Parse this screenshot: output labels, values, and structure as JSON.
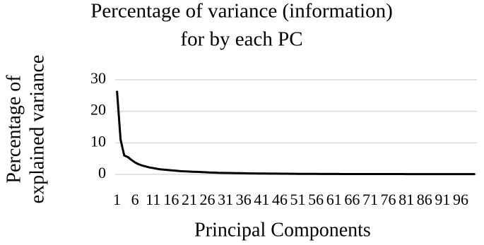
{
  "chart_data": {
    "type": "line",
    "title": [
      "Percentage of variance (information)",
      "for by each PC"
    ],
    "x_label": "Principal  Components",
    "y_label": [
      "Percentage of",
      "explained variance"
    ],
    "x": [
      1,
      2,
      3,
      4,
      5,
      6,
      7,
      8,
      9,
      10,
      11,
      12,
      13,
      14,
      15,
      16,
      17,
      18,
      19,
      20,
      21,
      22,
      23,
      24,
      25,
      26,
      27,
      28,
      29,
      30,
      31,
      32,
      33,
      34,
      35,
      36,
      37,
      38,
      39,
      40,
      41,
      42,
      43,
      44,
      45,
      46,
      47,
      48,
      49,
      50,
      51,
      52,
      53,
      54,
      55,
      56,
      57,
      58,
      59,
      60,
      61,
      62,
      63,
      64,
      65,
      66,
      67,
      68,
      69,
      70,
      71,
      72,
      73,
      74,
      75,
      76,
      77,
      78,
      79,
      80,
      81,
      82,
      83,
      84,
      85,
      86,
      87,
      88,
      89,
      90,
      91,
      92,
      93,
      94,
      95,
      96,
      97,
      98,
      99,
      100
    ],
    "xticks": [
      1,
      6,
      11,
      16,
      21,
      26,
      31,
      36,
      41,
      46,
      51,
      56,
      61,
      66,
      71,
      76,
      81,
      86,
      91,
      96
    ],
    "series": [
      {
        "name": "Percentage of explained variance",
        "color": "#000000",
        "values": [
          26.5,
          11,
          6,
          5.5,
          4.6,
          3.8,
          3.2,
          2.8,
          2.5,
          2.2,
          2,
          1.8,
          1.6,
          1.5,
          1.4,
          1.3,
          1.2,
          1.1,
          1,
          0.95,
          0.9,
          0.85,
          0.8,
          0.75,
          0.7,
          0.65,
          0.6,
          0.55,
          0.5,
          0.48,
          0.46,
          0.44,
          0.42,
          0.4,
          0.38,
          0.36,
          0.34,
          0.32,
          0.3,
          0.29,
          0.28,
          0.27,
          0.26,
          0.25,
          0.24,
          0.23,
          0.22,
          0.21,
          0.2,
          0.19,
          0.18,
          0.18,
          0.17,
          0.17,
          0.16,
          0.16,
          0.15,
          0.15,
          0.14,
          0.14,
          0.13,
          0.13,
          0.12,
          0.12,
          0.12,
          0.11,
          0.11,
          0.11,
          0.1,
          0.1,
          0.1,
          0.1,
          0.1,
          0.1,
          0.1,
          0.1,
          0.1,
          0.1,
          0.1,
          0.1,
          0.09,
          0.09,
          0.09,
          0.09,
          0.09,
          0.09,
          0.09,
          0.09,
          0.09,
          0.09,
          0.08,
          0.08,
          0.08,
          0.08,
          0.08,
          0.08,
          0.08,
          0.08,
          0.08,
          0.08
        ]
      }
    ],
    "ylim": [
      0,
      30
    ],
    "yticks": [
      0,
      10,
      20,
      30
    ],
    "grid": true
  }
}
